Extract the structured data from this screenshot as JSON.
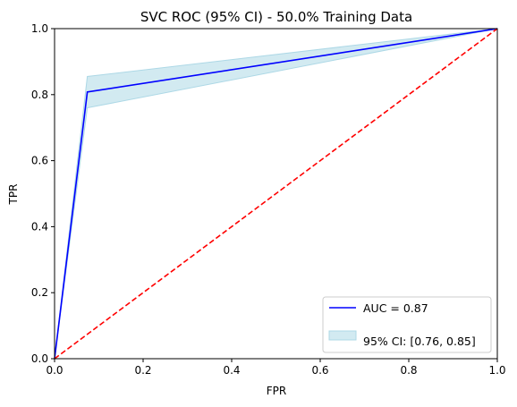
{
  "chart_data": {
    "type": "line",
    "title": "SVC ROC (95% CI) - 50.0% Training Data",
    "xlabel": "FPR",
    "ylabel": "TPR",
    "xlim": [
      0,
      1
    ],
    "ylim": [
      0,
      1
    ],
    "xticks": [
      "0.0",
      "0.2",
      "0.4",
      "0.6",
      "0.8",
      "1.0"
    ],
    "yticks": [
      "0.0",
      "0.2",
      "0.4",
      "0.6",
      "0.8",
      "1.0"
    ],
    "grid": false,
    "legend_position": "lower-right",
    "series": [
      {
        "name": "AUC = 0.87",
        "kind": "line",
        "color": "#0000ff",
        "x": [
          0.0,
          0.074,
          1.0
        ],
        "y": [
          0.0,
          0.808,
          1.0
        ]
      },
      {
        "name": "95% CI: [0.76, 0.85]",
        "kind": "band",
        "color": "#add8e6",
        "x": [
          0.0,
          0.074,
          1.0
        ],
        "lower": [
          0.0,
          0.76,
          1.0
        ],
        "upper": [
          0.0,
          0.855,
          1.0
        ]
      },
      {
        "name": "",
        "kind": "line",
        "style": "dashed",
        "color": "#ff0000",
        "x": [
          0.0,
          1.0
        ],
        "y": [
          0.0,
          1.0
        ]
      }
    ]
  }
}
